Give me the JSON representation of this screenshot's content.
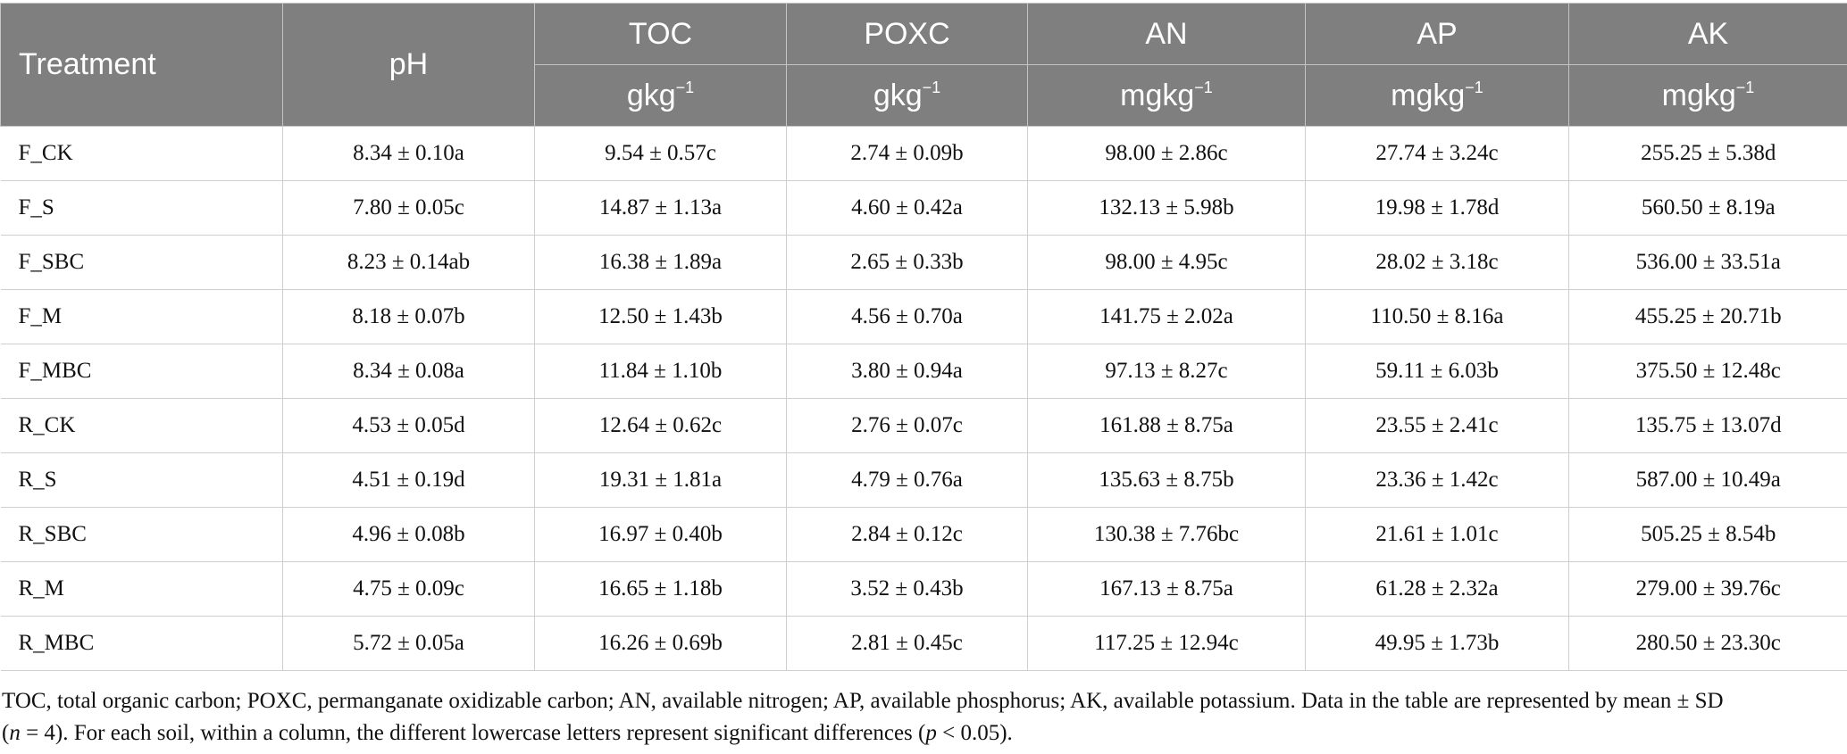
{
  "table": {
    "headers": {
      "treatment": "Treatment",
      "ph": "pH",
      "toc": "TOC",
      "poxc": "POXC",
      "an": "AN",
      "ap": "AP",
      "ak": "AK"
    },
    "units": {
      "toc_base": "gkg",
      "toc_exp": "−1",
      "poxc_base": "gkg",
      "poxc_exp": "−1",
      "an_base": "mgkg",
      "an_exp": "−1",
      "ap_base": "mgkg",
      "ap_exp": "−1",
      "ak_base": "mgkg",
      "ak_exp": "−1"
    },
    "rows": [
      [
        "F_CK",
        "8.34 ± 0.10a",
        "9.54 ± 0.57c",
        "2.74 ± 0.09b",
        "98.00 ± 2.86c",
        "27.74 ± 3.24c",
        "255.25 ± 5.38d"
      ],
      [
        "F_S",
        "7.80 ± 0.05c",
        "14.87 ± 1.13a",
        "4.60 ± 0.42a",
        "132.13 ± 5.98b",
        "19.98 ± 1.78d",
        "560.50 ± 8.19a"
      ],
      [
        "F_SBC",
        "8.23 ± 0.14ab",
        "16.38 ± 1.89a",
        "2.65 ± 0.33b",
        "98.00 ± 4.95c",
        "28.02 ± 3.18c",
        "536.00 ± 33.51a"
      ],
      [
        "F_M",
        "8.18 ± 0.07b",
        "12.50 ± 1.43b",
        "4.56 ± 0.70a",
        "141.75 ± 2.02a",
        "110.50 ± 8.16a",
        "455.25 ± 20.71b"
      ],
      [
        "F_MBC",
        "8.34 ± 0.08a",
        "11.84 ± 1.10b",
        "3.80 ± 0.94a",
        "97.13 ± 8.27c",
        "59.11 ± 6.03b",
        "375.50 ± 12.48c"
      ],
      [
        "R_CK",
        "4.53 ± 0.05d",
        "12.64 ± 0.62c",
        "2.76 ± 0.07c",
        "161.88 ± 8.75a",
        "23.55 ± 2.41c",
        "135.75 ± 13.07d"
      ],
      [
        "R_S",
        "4.51 ± 0.19d",
        "19.31 ± 1.81a",
        "4.79 ± 0.76a",
        "135.63 ± 8.75b",
        "23.36 ± 1.42c",
        "587.00 ± 10.49a"
      ],
      [
        "R_SBC",
        "4.96 ± 0.08b",
        "16.97 ± 0.40b",
        "2.84 ± 0.12c",
        "130.38 ± 7.76bc",
        "21.61 ± 1.01c",
        "505.25 ± 8.54b"
      ],
      [
        "R_M",
        "4.75 ± 0.09c",
        "16.65 ± 1.18b",
        "3.52 ± 0.43b",
        "167.13 ± 8.75a",
        "61.28 ± 2.32a",
        "279.00 ± 39.76c"
      ],
      [
        "R_MBC",
        "5.72 ± 0.05a",
        "16.26 ± 0.69b",
        "2.81 ± 0.45c",
        "117.25 ± 12.94c",
        "49.95 ± 1.73b",
        "280.50 ± 23.30c"
      ]
    ]
  },
  "footnote": {
    "line1": "TOC, total organic carbon; POXC, permanganate oxidizable carbon; AN, available nitrogen; AP, available phosphorus; AK, available potassium. Data in the table are represented by mean ± SD",
    "n_open": "(",
    "n_var": "n",
    "n_rest": " = 4). For each soil, within a column, the different lowercase letters represent significant differences (",
    "p_var": "p",
    "p_rest": " < 0.05)."
  }
}
